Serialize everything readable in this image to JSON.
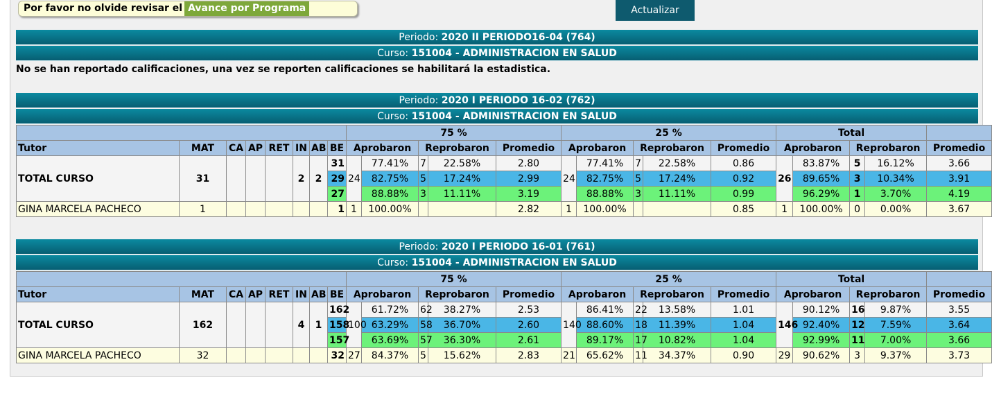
{
  "notice": {
    "text": "Por favor no olvide revisar el",
    "link": "Avance por Programa"
  },
  "update_button": "Actualizar",
  "sections": [
    {
      "periodo_label": "Periodo:",
      "periodo": "2020 II PERIODO16-04 (764)",
      "curso_label": "Curso:",
      "curso": "151004 - ADMINISTRACION EN SALUD"
    },
    {
      "periodo_label": "Periodo:",
      "periodo": "2020 I PERIODO 16-02 (762)",
      "curso_label": "Curso:",
      "curso": "151004 - ADMINISTRACION EN SALUD"
    },
    {
      "periodo_label": "Periodo:",
      "periodo": "2020 I PERIODO 16-01 (761)",
      "curso_label": "Curso:",
      "curso": "151004 - ADMINISTRACION EN SALUD"
    }
  ],
  "no_grades_message": "No se han reportado calificaciones, una vez se reporten calificaciones se habilitará la estadistica.",
  "headers": {
    "group_75": "75 %",
    "group_25": "25 %",
    "group_total": "Total",
    "tutor": "Tutor",
    "mat": "MAT",
    "ca": "CA",
    "ap": "AP",
    "ret": "RET",
    "in": "IN",
    "ab": "AB",
    "be": "BE",
    "aprobaron": "Aprobaron",
    "reprobaron": "Reprobaron",
    "promedio": "Promedio"
  },
  "colors": {
    "bar": "#0b7a90",
    "header": "#a7c4e4",
    "blue_row": "#4ab6e6",
    "green_row": "#6cf27a",
    "notice_bg": "#fdfdd8",
    "link_bg": "#7ea83a"
  },
  "tables": [
    {
      "total_label": "TOTAL CURSO",
      "mat": "31",
      "ca": "",
      "ap": "",
      "ret": "",
      "in": "2",
      "ab": "2",
      "be": [
        "31",
        "29",
        "27"
      ],
      "a75_count": "24",
      "a25_count": "24",
      "t_count": "26",
      "rows": [
        {
          "a75_pct": "77.41%",
          "r75": "7",
          "r75_pct": "22.58%",
          "p75": "2.80",
          "a25_pct": "77.41%",
          "r25": "7",
          "r25_pct": "22.58%",
          "p25": "0.86",
          "t_pct": "83.87%",
          "tr": "5",
          "tr_pct": "16.12%",
          "tp": "3.66"
        },
        {
          "a75_pct": "82.75%",
          "r75": "5",
          "r75_pct": "17.24%",
          "p75": "2.99",
          "a25_pct": "82.75%",
          "r25": "5",
          "r25_pct": "17.24%",
          "p25": "0.92",
          "t_pct": "89.65%",
          "tr": "3",
          "tr_pct": "10.34%",
          "tp": "3.91"
        },
        {
          "a75_pct": "88.88%",
          "r75": "3",
          "r75_pct": "11.11%",
          "p75": "3.19",
          "a25_pct": "88.88%",
          "r25": "3",
          "r25_pct": "11.11%",
          "p25": "0.99",
          "t_pct": "96.29%",
          "tr": "1",
          "tr_pct": "3.70%",
          "tp": "4.19"
        }
      ],
      "tutor": {
        "name": "GINA MARCELA PACHECO",
        "mat": "1",
        "ca": "",
        "ap": "",
        "ret": "",
        "in": "",
        "ab": "",
        "be": "1",
        "a75": "1",
        "a75_pct": "100.00%",
        "r75": "",
        "r75_pct": "",
        "p75": "2.82",
        "a25": "1",
        "a25_pct": "100.00%",
        "r25": "",
        "r25_pct": "",
        "p25": "0.85",
        "t": "1",
        "t_pct": "100.00%",
        "tr": "0",
        "tr_pct": "0.00%",
        "tp": "3.67"
      }
    },
    {
      "total_label": "TOTAL CURSO",
      "mat": "162",
      "ca": "",
      "ap": "",
      "ret": "",
      "in": "4",
      "ab": "1",
      "be": [
        "162",
        "158",
        "157"
      ],
      "a75_count": "100",
      "a25_count": "140",
      "t_count": "146",
      "rows": [
        {
          "a75_pct": "61.72%",
          "r75": "62",
          "r75_pct": "38.27%",
          "p75": "2.53",
          "a25_pct": "86.41%",
          "r25": "22",
          "r25_pct": "13.58%",
          "p25": "1.01",
          "t_pct": "90.12%",
          "tr": "16",
          "tr_pct": "9.87%",
          "tp": "3.55"
        },
        {
          "a75_pct": "63.29%",
          "r75": "58",
          "r75_pct": "36.70%",
          "p75": "2.60",
          "a25_pct": "88.60%",
          "r25": "18",
          "r25_pct": "11.39%",
          "p25": "1.04",
          "t_pct": "92.40%",
          "tr": "12",
          "tr_pct": "7.59%",
          "tp": "3.64"
        },
        {
          "a75_pct": "63.69%",
          "r75": "57",
          "r75_pct": "36.30%",
          "p75": "2.61",
          "a25_pct": "89.17%",
          "r25": "17",
          "r25_pct": "10.82%",
          "p25": "1.04",
          "t_pct": "92.99%",
          "tr": "11",
          "tr_pct": "7.00%",
          "tp": "3.66"
        }
      ],
      "tutor": {
        "name": "GINA MARCELA PACHECO",
        "mat": "32",
        "ca": "",
        "ap": "",
        "ret": "",
        "in": "",
        "ab": "",
        "be": "32",
        "a75": "27",
        "a75_pct": "84.37%",
        "r75": "5",
        "r75_pct": "15.62%",
        "p75": "2.83",
        "a25": "21",
        "a25_pct": "65.62%",
        "r25": "11",
        "r25_pct": "34.37%",
        "p25": "0.90",
        "t": "29",
        "t_pct": "90.62%",
        "tr": "3",
        "tr_pct": "9.37%",
        "tp": "3.73"
      }
    }
  ]
}
